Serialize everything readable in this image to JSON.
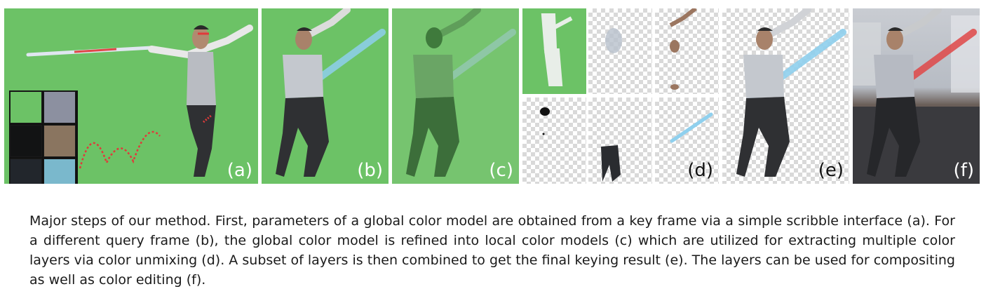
{
  "panels": {
    "a": {
      "label": "(a)"
    },
    "b": {
      "label": "(b)"
    },
    "c": {
      "label": "(c)"
    },
    "d": {
      "label": "(d)"
    },
    "e": {
      "label": "(e)"
    },
    "f": {
      "label": "(f)"
    }
  },
  "swatches": [
    "#6cc266",
    "#8c90a0",
    "#121314",
    "#8a7560",
    "#22262c",
    "#7ab8cc"
  ],
  "colors": {
    "green_screen": "#6cc266",
    "saber_blue": "#8fd0ee",
    "saber_red": "#e04848"
  },
  "caption": "Major steps of our method. First, parameters of a global color model are obtained from a key frame via a simple scribble interface (a). For a different query frame (b), the global color model is refined into local color models (c) which are utilized for extracting multiple color layers via color unmixing (d). A subset of layers is then combined to get the final keying result (e). The layers can be used for compositing as well as color editing (f)."
}
